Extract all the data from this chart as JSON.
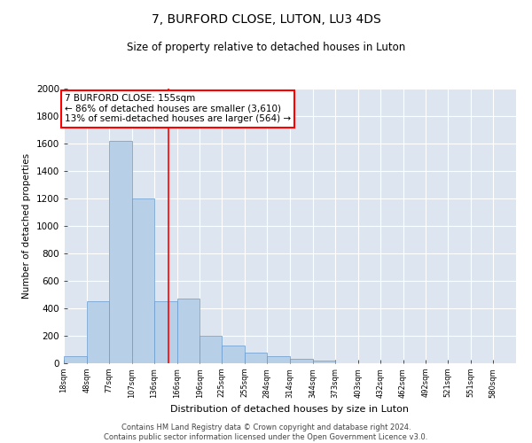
{
  "title": "7, BURFORD CLOSE, LUTON, LU3 4DS",
  "subtitle": "Size of property relative to detached houses in Luton",
  "xlabel": "Distribution of detached houses by size in Luton",
  "ylabel": "Number of detached properties",
  "footer_line1": "Contains HM Land Registry data © Crown copyright and database right 2024.",
  "footer_line2": "Contains public sector information licensed under the Open Government Licence v3.0.",
  "bar_color": "#b8cfe8",
  "bar_edge_color": "#6699cc",
  "bg_color": "#dde6f0",
  "red_line_x": 155,
  "annotation_title": "7 BURFORD CLOSE: 155sqm",
  "annotation_line2": "← 86% of detached houses are smaller (3,610)",
  "annotation_line3": "13% of semi-detached houses are larger (564) →",
  "bins": [
    18,
    48,
    77,
    107,
    136,
    166,
    196,
    225,
    255,
    284,
    314,
    344,
    373,
    403,
    432,
    462,
    492,
    521,
    551,
    580,
    610
  ],
  "counts": [
    50,
    450,
    1620,
    1200,
    450,
    470,
    200,
    130,
    80,
    50,
    30,
    20,
    0,
    0,
    0,
    0,
    0,
    0,
    0,
    0
  ],
  "ylim": [
    0,
    2000
  ],
  "yticks": [
    0,
    200,
    400,
    600,
    800,
    1000,
    1200,
    1400,
    1600,
    1800,
    2000
  ]
}
